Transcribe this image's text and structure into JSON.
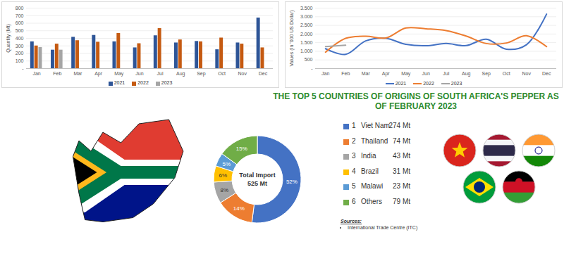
{
  "chart_data": [
    {
      "type": "bar",
      "y_label": "Quantity (Mt)",
      "categories": [
        "Jan",
        "Feb",
        "Mar",
        "Apr",
        "May",
        "Jun",
        "Jul",
        "Aug",
        "Sep",
        "Oct",
        "Nov",
        "Dec"
      ],
      "series": [
        {
          "name": "2021",
          "color": "#2e5597",
          "values": [
            355,
            245,
            415,
            440,
            355,
            275,
            435,
            340,
            360,
            250,
            340,
            670
          ]
        },
        {
          "name": "2022",
          "color": "#c55a11",
          "values": [
            300,
            325,
            370,
            350,
            465,
            330,
            530,
            380,
            355,
            405,
            325,
            275
          ]
        },
        {
          "name": "2023",
          "color": "#a5a5a5",
          "values": [
            280,
            245,
            null,
            null,
            null,
            null,
            null,
            null,
            null,
            null,
            null,
            null
          ]
        }
      ],
      "ylim": [
        0,
        800
      ],
      "yticks": [
        {
          "value": 0,
          "label": "-"
        },
        100,
        200,
        300,
        400,
        500,
        600,
        700,
        800
      ],
      "grid": true,
      "legend": "bottom"
    },
    {
      "type": "line",
      "y_label": "Values (In '000 US Dollar)",
      "categories": [
        "Jan",
        "Feb",
        "Mar",
        "Apr",
        "May",
        "Jun",
        "Jul",
        "Aug",
        "Sep",
        "Oct",
        "Nov",
        "Dec"
      ],
      "series": [
        {
          "name": "2021",
          "color": "#4472c4",
          "values": [
            1150,
            820,
            1600,
            1750,
            1400,
            1320,
            1450,
            1330,
            1700,
            1120,
            1380,
            3150
          ]
        },
        {
          "name": "2022",
          "color": "#ed7d31",
          "values": [
            950,
            1750,
            1870,
            1770,
            2350,
            2300,
            2200,
            1880,
            1450,
            1480,
            1900,
            1270
          ]
        },
        {
          "name": "2023",
          "color": "#a5a5a5",
          "values": [
            1270,
            1350,
            null,
            null,
            null,
            null,
            null,
            null,
            null,
            null,
            null,
            null
          ]
        }
      ],
      "ylim": [
        0,
        3500
      ],
      "yticks": [
        {
          "value": 0,
          "label": "-"
        },
        500,
        {
          "value": 1000,
          "label": "1.000"
        },
        {
          "value": 1500,
          "label": "1.500"
        },
        {
          "value": 2000,
          "label": "2.000"
        },
        {
          "value": 2500,
          "label": "2.500"
        },
        {
          "value": 3000,
          "label": "3.000"
        },
        {
          "value": 3500,
          "label": "3.500"
        }
      ],
      "grid": true,
      "legend": "bottom"
    },
    {
      "type": "pie",
      "title": "THE TOP 5 COUNTRIES OF ORIGINS OF SOUTH AFRICA'S PEPPER AS OF FEBRUARY 2023",
      "categories": [
        "Viet Nam",
        "Thailand",
        "India",
        "Brazil",
        "Malawi",
        "Others"
      ],
      "ranks": [
        1,
        2,
        3,
        4,
        5,
        6
      ],
      "values": [
        52,
        14,
        8,
        6,
        5,
        15
      ],
      "value_labels": [
        "52%",
        "14%",
        "8%",
        "6%",
        "5%",
        "15%"
      ],
      "data_labels": true,
      "colors": [
        "#4472c4",
        "#ed7d31",
        "#a5a5a5",
        "#ffc000",
        "#5b9bd5",
        "#70ad47"
      ],
      "quantities": [
        274,
        74,
        43,
        31,
        23,
        79
      ],
      "quantity_labels": [
        "274 Mt",
        "74 Mt",
        "43 Mt",
        "31 Mt",
        "23 Mt",
        "79 Mt"
      ],
      "center_label": "Total Import",
      "total": 525,
      "total_label": "525 Mt",
      "sources_title": "Sources:",
      "sources": [
        "International Trade Centre (ITC)"
      ]
    }
  ]
}
